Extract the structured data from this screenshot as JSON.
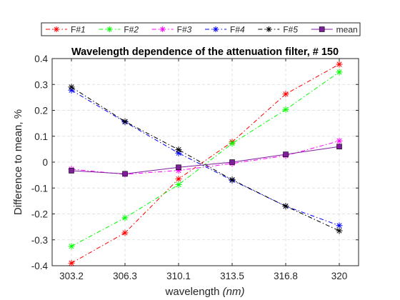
{
  "chart_data": {
    "type": "line",
    "title": "Wavelength dependence of the attenuation filter,  # 150",
    "xlabel_main": "wavelength ",
    "xlabel_unit": "(nm)",
    "ylabel": "Difference to mean, %",
    "categories": [
      "303.2",
      "306.3",
      "310.1",
      "313.5",
      "316.8",
      "320"
    ],
    "ylim": [
      -0.4,
      0.4
    ],
    "yticks": [
      -0.4,
      -0.3,
      -0.2,
      -0.1,
      0,
      0.1,
      0.2,
      0.3,
      0.4
    ],
    "ytick_labels": [
      "-0.4",
      "-0.3",
      "-0.2",
      "-0.1",
      "0",
      "0.1",
      "0.2",
      "0.3",
      "0.4"
    ],
    "grid": true,
    "legend_position": "top",
    "series": [
      {
        "name": "F#",
        "index": "1",
        "color": "#ff0000",
        "dash": "6 3 1.5 3",
        "marker": "star",
        "values": [
          -0.39,
          -0.273,
          -0.065,
          0.078,
          0.263,
          0.378
        ]
      },
      {
        "name": "F#",
        "index": "2",
        "color": "#00ff00",
        "dash": "6 3 1.5 3",
        "marker": "star",
        "values": [
          -0.325,
          -0.215,
          -0.087,
          0.072,
          0.203,
          0.348
        ]
      },
      {
        "name": "F#",
        "index": "3",
        "color": "#ff00ff",
        "dash": "6 3 1.5 3",
        "marker": "star",
        "values": [
          -0.027,
          -0.047,
          -0.032,
          -0.005,
          0.025,
          0.082
        ]
      },
      {
        "name": "F#",
        "index": "4",
        "color": "#0000ff",
        "dash": "6 3 1.5 3",
        "marker": "star",
        "values": [
          0.278,
          0.155,
          0.035,
          -0.07,
          -0.17,
          -0.245
        ]
      },
      {
        "name": "F#",
        "index": "5",
        "color": "#000000",
        "dash": "6 3 1.5 3",
        "marker": "star",
        "values": [
          0.29,
          0.157,
          0.048,
          -0.068,
          -0.17,
          -0.265
        ]
      },
      {
        "name": "mean",
        "index": "",
        "color": "#7e1e9c",
        "dash": "",
        "marker": "square",
        "values": [
          -0.033,
          -0.045,
          -0.02,
          0.0,
          0.03,
          0.06
        ]
      }
    ]
  }
}
